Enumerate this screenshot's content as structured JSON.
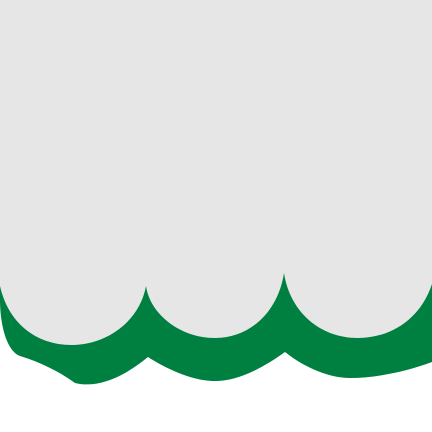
{
  "colors": {
    "background": "#ffffff",
    "panel": "#e6e6e6",
    "scallop_band": "#008040"
  },
  "graphic": {
    "description_icon": "scalloped-awning-edge-icon"
  }
}
